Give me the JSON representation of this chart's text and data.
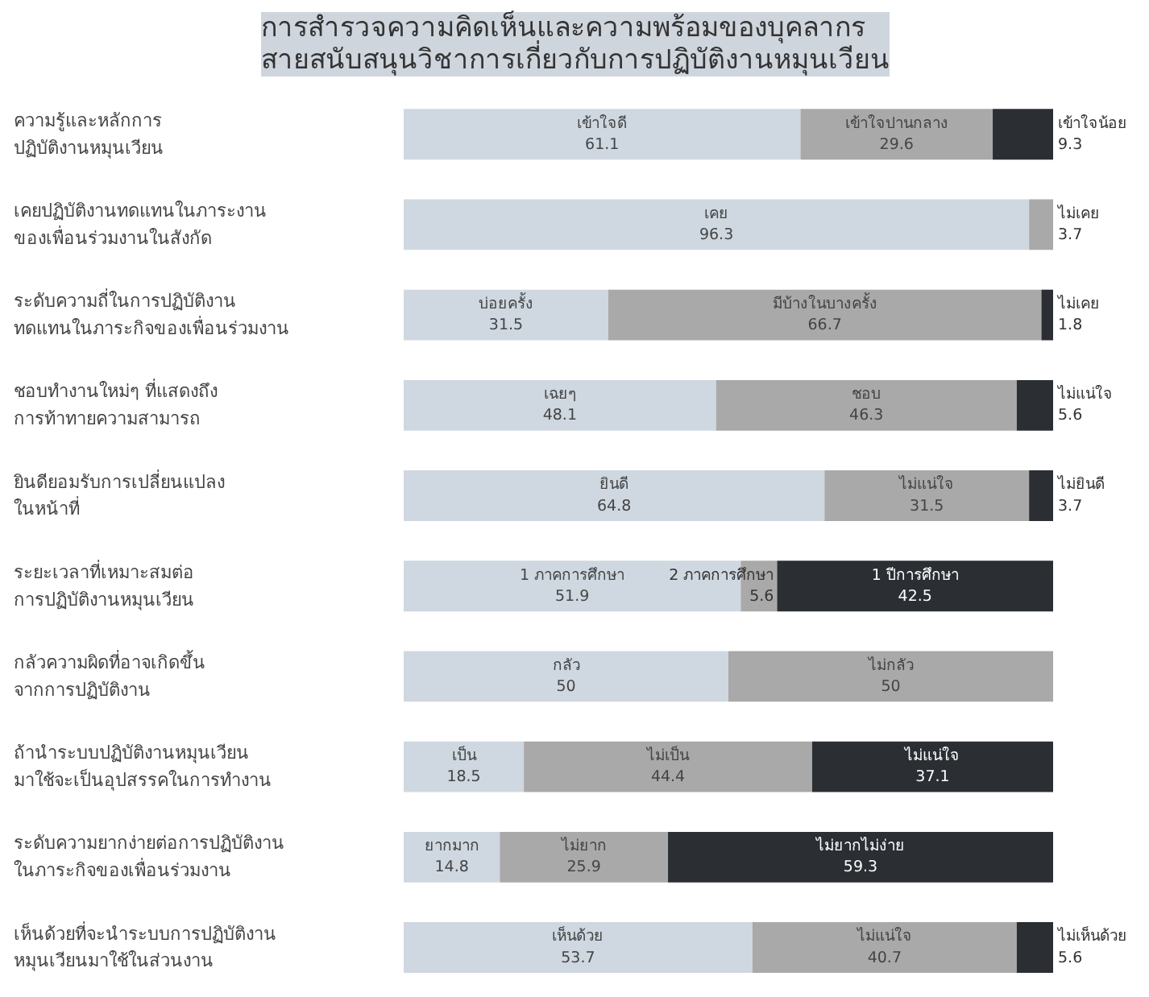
{
  "chart_data": {
    "type": "bar",
    "orientation": "horizontal",
    "stacked": true,
    "title": "การสำรวจความคิดเห็นและความพร้อมของบุคลากร\nสายสนับสนุนวิชาการเกี่ยวกับการปฏิบัติงานหมุนเวียน",
    "categories": [
      "ความรู้และหลักการ\nปฏิบัติงานหมุนเวียน",
      "เคยปฏิบัติงานทดแทนในภาระงาน\nของเพื่อนร่วมงานในสังกัด",
      "ระดับความถี่ในการปฏิบัติงาน\nทดแทนในภาระกิจของเพื่อนร่วมงาน",
      "ชอบทำงานใหม่ๆ ที่แสดงถึง\nการท้าทายความสามารถ",
      "ยินดียอมรับการเปลี่ยนแปลง\nในหน้าที่",
      "ระยะเวลาที่เหมาะสมต่อ\nการปฏิบัติงานหมุนเวียน",
      "กลัวความผิดที่อาจเกิดขึ้น\nจากการปฏิบัติงาน",
      "ถ้านำระบบปฏิบัติงานหมุนเวียน\nมาใช้จะเป็นอุปสรรคในการทำงาน",
      "ระดับความยากง่ายต่อการปฏิบัติงาน\nในภาระกิจของเพื่อนร่วมงาน",
      "เห็นด้วยที่จะนำระบบการปฏิบัติงาน\nหมุนเวียนมาใช้ในส่วนงาน"
    ],
    "xlim": [
      0,
      100
    ],
    "tick_labels": false,
    "grid": false,
    "legend": false,
    "series": [
      {
        "color": "#cfd8e0",
        "values": [
          61.1,
          96.3,
          31.5,
          48.1,
          64.8,
          51.9,
          50,
          18.5,
          14.8,
          53.7
        ],
        "value_labels": [
          "เข้าใจดี\n61.1",
          "เคย\n96.3",
          "บ่อยครั้ง\n31.5",
          "เฉยๆ\n48.1",
          "ยินดี\n64.8",
          "1 ภาคการศึกษา\n51.9",
          "กลัว\n50",
          "เป็น\n18.5",
          "ยากมาก\n14.8",
          "เห็นด้วย\n53.7"
        ]
      },
      {
        "color": "#a9a9a9",
        "values": [
          29.6,
          3.7,
          66.7,
          46.3,
          31.5,
          5.6,
          50,
          44.4,
          25.9,
          40.7
        ],
        "value_labels": [
          "เข้าใจปานกลาง\n29.6",
          "ไม่เคย\n3.7",
          "มีบ้างในบางครั้ง\n66.7",
          "ชอบ\n46.3",
          "ไม่แน่ใจ\n31.5",
          "2 ภาคการศึกษา\n5.6",
          "ไม่กลัว\n50",
          "ไม่เป็น\n44.4",
          "ไม่ยาก\n25.9",
          "ไม่แน่ใจ\n40.7"
        ]
      },
      {
        "color": "#2b2e33",
        "values": [
          9.3,
          null,
          1.8,
          5.6,
          3.7,
          42.5,
          null,
          37.1,
          59.3,
          5.6
        ],
        "value_labels": [
          "เข้าใจน้อย\n9.3",
          null,
          "ไม่เคย\n1.8",
          "ไม่แน่ใจ\n5.6",
          "ไม่ยินดี\n3.7",
          "1 ปีการศึกษา\n42.5",
          null,
          "ไม่แน่ใจ\n37.1",
          "ไม่ยากไม่ง่าย\n59.3",
          "ไม่เห็นด้วย\n5.6"
        ]
      }
    ]
  }
}
